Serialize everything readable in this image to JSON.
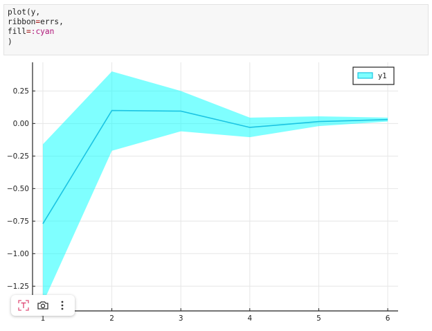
{
  "code": {
    "line1": "plot(y,",
    "line2_prefix": "ribbon",
    "line2_op": "=",
    "line2_suffix": "errs,",
    "line3_prefix": "fill",
    "line3_op": "=",
    "line3_sym": ":cyan",
    "line4": ")"
  },
  "chart_data": {
    "type": "line",
    "x": [
      1,
      2,
      3,
      4,
      5,
      6
    ],
    "series": [
      {
        "name": "y1",
        "values": [
          -0.77,
          0.1,
          0.095,
          -0.03,
          0.015,
          0.03
        ],
        "ribbon_upper": [
          -0.16,
          0.4,
          0.25,
          0.045,
          0.055,
          0.045
        ],
        "ribbon_lower": [
          -1.38,
          -0.21,
          -0.06,
          -0.105,
          -0.02,
          0.015
        ],
        "line_color": "#1bc4e2",
        "fill_color": "#00ffff"
      }
    ],
    "xticks": [
      "1",
      "2",
      "3",
      "4",
      "5",
      "6"
    ],
    "yticks": [
      "0.25",
      "0.00",
      "−0.25",
      "−0.50",
      "−0.75",
      "−1.00",
      "−1.25"
    ],
    "ytick_values": [
      0.25,
      0.0,
      -0.25,
      -0.5,
      -0.75,
      -1.0,
      -1.25
    ],
    "xlim": [
      0.85,
      6.15
    ],
    "ylim": [
      -1.44,
      0.47
    ],
    "grid": true,
    "legend": "top-right",
    "title": "",
    "xlabel": "",
    "ylabel": ""
  },
  "toolbar": {
    "buttons": [
      "text-tool-icon",
      "camera-icon",
      "more-options-icon"
    ]
  }
}
